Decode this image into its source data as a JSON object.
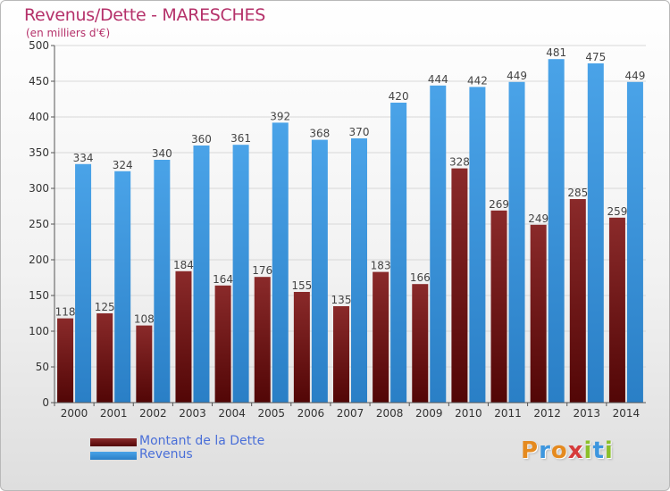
{
  "title": "Revenus/Dette - MARESCHES",
  "subtitle": "(en milliers d'€)",
  "logo": "Proxiti",
  "colors": {
    "title": "#b5316a",
    "debt": "#7a1a1a",
    "revenue": "#3d96de",
    "legend_text": "#4a6fd8",
    "grid": "#d8d8d8"
  },
  "chart_data": {
    "type": "bar",
    "title": "Revenus/Dette - MARESCHES",
    "subtitle": "(en milliers d'€)",
    "categories": [
      "2000",
      "2001",
      "2002",
      "2003",
      "2004",
      "2005",
      "2006",
      "2007",
      "2008",
      "2009",
      "2010",
      "2011",
      "2012",
      "2013",
      "2014"
    ],
    "series": [
      {
        "name": "Montant de la Dette",
        "color": "#7a1a1a",
        "values": [
          118,
          125,
          108,
          184,
          164,
          176,
          155,
          135,
          183,
          166,
          328,
          269,
          249,
          285,
          259
        ]
      },
      {
        "name": "Revenus",
        "color": "#3d96de",
        "values": [
          334,
          324,
          340,
          360,
          361,
          392,
          368,
          370,
          420,
          444,
          442,
          449,
          481,
          475,
          449
        ]
      }
    ],
    "ylim": [
      0,
      500
    ],
    "yticks": [
      0,
      50,
      100,
      150,
      200,
      250,
      300,
      350,
      400,
      450,
      500
    ],
    "grid": true,
    "legend": "bottom-left",
    "data_labels": true
  }
}
